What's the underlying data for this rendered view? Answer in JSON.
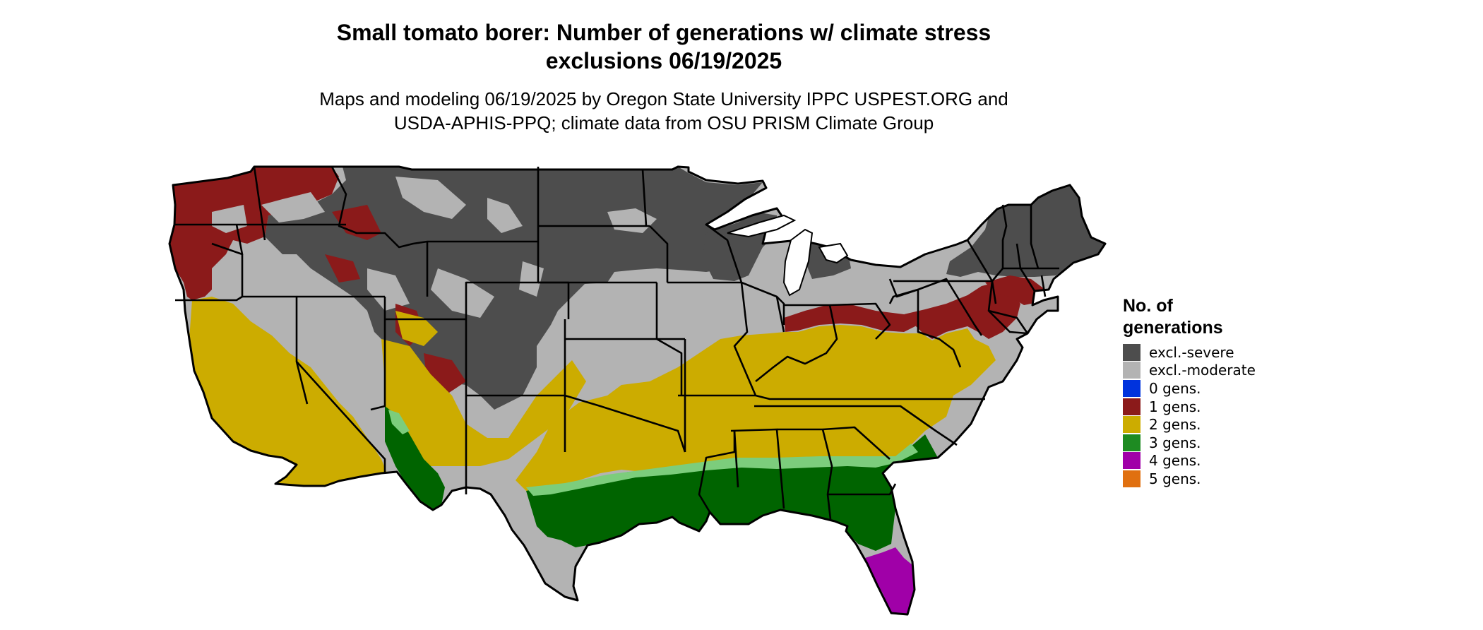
{
  "title": "Small tomato borer: Number of generations w/ climate stress exclusions 06/19/2025",
  "title_lines": [
    "Small tomato borer: Number of generations w/ climate stress",
    "exclusions 06/19/2025"
  ],
  "subtitle_lines": [
    "Maps and modeling 06/19/2025 by Oregon State University IPPC USPEST.ORG and",
    "USDA-APHIS-PPQ; climate data from OSU PRISM Climate Group"
  ],
  "legend": {
    "title_lines": [
      "No. of",
      "generations"
    ],
    "items": [
      {
        "label": "excl.-severe",
        "color": "#4d4d4d"
      },
      {
        "label": "excl.-moderate",
        "color": "#b3b3b3"
      },
      {
        "label": "0 gens.",
        "color": "#0033dd"
      },
      {
        "label": "1 gens.",
        "color": "#8b1a1a"
      },
      {
        "label": "2 gens.",
        "color": "#ccac00"
      },
      {
        "label": "3 gens.",
        "color": "#1e8b22"
      },
      {
        "label": "4 gens.",
        "color": "#a000a8"
      },
      {
        "label": "5 gens.",
        "color": "#e07010"
      }
    ]
  },
  "map_colors": {
    "dark_green": "#006400",
    "light_green": "#7ccd7c",
    "border": "#000000"
  }
}
